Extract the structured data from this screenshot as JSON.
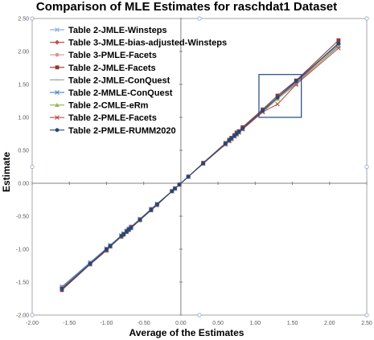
{
  "chart_data": {
    "type": "line",
    "title": "Comparison of MLE Estimates for raschdat1 Dataset",
    "xlabel": "Average of the Estimates",
    "ylabel": "Estimate",
    "xlim": [
      -2.0,
      2.5
    ],
    "ylim": [
      -2.0,
      2.5
    ],
    "x_ticks": [
      "-2.00",
      "-1.50",
      "-1.00",
      "-0.50",
      "0.00",
      "0.50",
      "1.00",
      "1.50",
      "2.00",
      "2.50"
    ],
    "y_ticks": [
      "-2.00",
      "-1.50",
      "-1.00",
      "-0.50",
      "0.00",
      "0.50",
      "1.00",
      "1.50",
      "2.00",
      "2.50"
    ],
    "grid": false,
    "legend_position": "top-left",
    "highlight_box": {
      "x": [
        1.05,
        1.62
      ],
      "y": [
        1.0,
        1.65
      ]
    },
    "x": [
      -1.6,
      -1.22,
      -1.0,
      -0.95,
      -0.8,
      -0.77,
      -0.73,
      -0.7,
      -0.67,
      -0.55,
      -0.4,
      -0.32,
      -0.12,
      -0.08,
      -0.02,
      0.1,
      0.3,
      0.6,
      0.65,
      0.68,
      0.72,
      0.75,
      0.78,
      0.83,
      1.1,
      1.3,
      1.55,
      2.12
    ],
    "series": [
      {
        "name": "Table 2-JMLE-Winsteps",
        "color": "#8eb4e3",
        "marker": "x",
        "values": [
          -1.59,
          -1.22,
          -1.01,
          -0.96,
          -0.8,
          -0.77,
          -0.73,
          -0.69,
          -0.66,
          -0.55,
          -0.4,
          -0.32,
          -0.12,
          -0.08,
          -0.02,
          0.1,
          0.3,
          0.6,
          0.65,
          0.68,
          0.72,
          0.76,
          0.78,
          0.84,
          1.1,
          1.31,
          1.54,
          2.13
        ]
      },
      {
        "name": "Table 3-JMLE-bias-adjusted-Winsteps",
        "color": "#c0504d",
        "marker": "diamond",
        "values": [
          -1.58,
          -1.21,
          -1.0,
          -0.95,
          -0.8,
          -0.77,
          -0.72,
          -0.69,
          -0.66,
          -0.55,
          -0.39,
          -0.32,
          -0.12,
          -0.08,
          -0.02,
          0.1,
          0.3,
          0.6,
          0.65,
          0.68,
          0.72,
          0.75,
          0.78,
          0.83,
          1.1,
          1.3,
          1.53,
          2.12
        ]
      },
      {
        "name": "Table 3-PMLE-Facets",
        "color": "#d99694",
        "marker": "circle",
        "values": [
          -1.6,
          -1.22,
          -1.0,
          -0.95,
          -0.8,
          -0.77,
          -0.73,
          -0.7,
          -0.67,
          -0.55,
          -0.4,
          -0.32,
          -0.12,
          -0.08,
          -0.02,
          0.1,
          0.3,
          0.59,
          0.64,
          0.67,
          0.71,
          0.74,
          0.77,
          0.82,
          1.09,
          1.29,
          1.52,
          2.08
        ]
      },
      {
        "name": "Table 2-JMLE-Facets",
        "color": "#953735",
        "marker": "square",
        "values": [
          -1.62,
          -1.23,
          -1.02,
          -0.96,
          -0.81,
          -0.78,
          -0.74,
          -0.71,
          -0.68,
          -0.56,
          -0.41,
          -0.33,
          -0.12,
          -0.08,
          -0.02,
          0.1,
          0.31,
          0.61,
          0.66,
          0.69,
          0.73,
          0.77,
          0.79,
          0.85,
          1.12,
          1.33,
          1.56,
          2.17
        ]
      },
      {
        "name": "Table 2-JMLE-ConQuest",
        "color": "#a6a6a6",
        "marker": "dash",
        "values": [
          -1.6,
          -1.22,
          -1.0,
          -0.95,
          -0.8,
          -0.77,
          -0.73,
          -0.7,
          -0.67,
          -0.55,
          -0.4,
          -0.32,
          -0.12,
          -0.08,
          -0.02,
          0.1,
          0.3,
          0.6,
          0.65,
          0.68,
          0.72,
          0.75,
          0.78,
          0.83,
          1.1,
          1.3,
          1.55,
          2.12
        ]
      },
      {
        "name": "Table 2-MMLE-ConQuest",
        "color": "#558ed5",
        "marker": "x",
        "values": [
          -1.57,
          -1.2,
          -0.99,
          -0.94,
          -0.79,
          -0.76,
          -0.72,
          -0.69,
          -0.66,
          -0.54,
          -0.39,
          -0.31,
          -0.12,
          -0.08,
          -0.02,
          0.1,
          0.3,
          0.59,
          0.64,
          0.67,
          0.71,
          0.74,
          0.77,
          0.82,
          1.08,
          1.28,
          1.52,
          2.08
        ]
      },
      {
        "name": "Table 2-CMLE-eRm",
        "color": "#9bbb59",
        "marker": "triangle",
        "values": [
          -1.59,
          -1.22,
          -1.0,
          -0.95,
          -0.8,
          -0.77,
          -0.73,
          -0.7,
          -0.67,
          -0.55,
          -0.4,
          -0.32,
          -0.12,
          -0.08,
          -0.02,
          0.1,
          0.3,
          0.6,
          0.65,
          0.68,
          0.72,
          0.75,
          0.78,
          0.82,
          1.09,
          1.28,
          1.5,
          2.1
        ]
      },
      {
        "name": "Table 2-PMLE-Facets",
        "color": "#c0504d",
        "marker": "x",
        "values": [
          -1.6,
          -1.22,
          -1.0,
          -0.95,
          -0.8,
          -0.77,
          -0.73,
          -0.7,
          -0.67,
          -0.55,
          -0.4,
          -0.32,
          -0.12,
          -0.08,
          -0.02,
          0.1,
          0.3,
          0.59,
          0.64,
          0.67,
          0.71,
          0.74,
          0.77,
          0.82,
          1.08,
          1.2,
          1.5,
          2.05
        ]
      },
      {
        "name": "Table 2-PMLE-RUMM2020",
        "color": "#1f497d",
        "marker": "circle",
        "values": [
          -1.6,
          -1.22,
          -1.0,
          -0.95,
          -0.8,
          -0.77,
          -0.73,
          -0.7,
          -0.67,
          -0.55,
          -0.4,
          -0.32,
          -0.12,
          -0.08,
          -0.02,
          0.1,
          0.3,
          0.6,
          0.65,
          0.68,
          0.72,
          0.75,
          0.78,
          0.83,
          1.1,
          1.3,
          1.55,
          2.12
        ]
      }
    ]
  }
}
